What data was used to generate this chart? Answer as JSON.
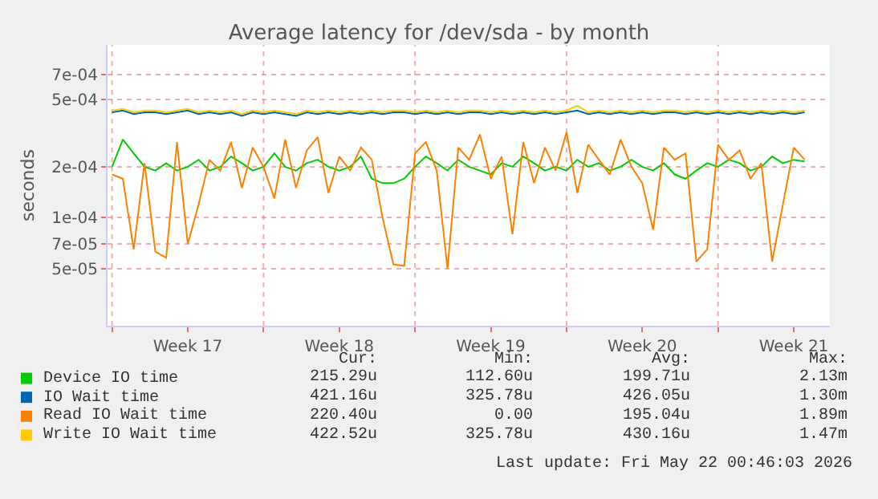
{
  "chart_data": {
    "type": "line",
    "title": "Average latency for /dev/sda - by month",
    "ylabel": "seconds",
    "log": "y",
    "grid": true,
    "legend": "bottom",
    "marker": "none",
    "line_style": "solid",
    "ylim": [
      2.3e-05,
      0.00105
    ],
    "yticks": [
      {
        "value": 0.0007,
        "label": "7e-04"
      },
      {
        "value": 0.0005,
        "label": "5e-04"
      },
      {
        "value": 0.0002,
        "label": "2e-04"
      },
      {
        "value": 0.0001,
        "label": "1e-04"
      },
      {
        "value": 7e-05,
        "label": "7e-05"
      },
      {
        "value": 5e-05,
        "label": "5e-05"
      }
    ],
    "xlim": [
      "2026-04-19T19:00",
      "2026-05-23T04:00"
    ],
    "xticks": [
      {
        "value": "2026-04-20",
        "label": null
      },
      {
        "value": "2026-04-23T12:00",
        "label": "Week 17"
      },
      {
        "value": "2026-04-27",
        "label": null
      },
      {
        "value": "2026-04-30T12:00",
        "label": "Week 18"
      },
      {
        "value": "2026-05-04",
        "label": null
      },
      {
        "value": "2026-05-07T12:00",
        "label": "Week 19"
      },
      {
        "value": "2026-05-11",
        "label": null
      },
      {
        "value": "2026-05-14T12:00",
        "label": "Week 20"
      },
      {
        "value": "2026-05-18",
        "label": null
      },
      {
        "value": "2026-05-21T12:00",
        "label": "Week 21"
      }
    ],
    "x": [
      "2026-04-20T00:00",
      "2026-04-20T12:00",
      "2026-04-21T00:00",
      "2026-04-21T12:00",
      "2026-04-22T00:00",
      "2026-04-22T12:00",
      "2026-04-23T00:00",
      "2026-04-23T12:00",
      "2026-04-24T00:00",
      "2026-04-24T12:00",
      "2026-04-25T00:00",
      "2026-04-25T12:00",
      "2026-04-26T00:00",
      "2026-04-26T12:00",
      "2026-04-27T00:00",
      "2026-04-27T12:00",
      "2026-04-28T00:00",
      "2026-04-28T12:00",
      "2026-04-29T00:00",
      "2026-04-29T12:00",
      "2026-04-30T00:00",
      "2026-04-30T12:00",
      "2026-05-01T00:00",
      "2026-05-01T12:00",
      "2026-05-02T00:00",
      "2026-05-02T12:00",
      "2026-05-03T00:00",
      "2026-05-03T12:00",
      "2026-05-04T00:00",
      "2026-05-04T12:00",
      "2026-05-05T00:00",
      "2026-05-05T12:00",
      "2026-05-06T00:00",
      "2026-05-06T12:00",
      "2026-05-07T00:00",
      "2026-05-07T12:00",
      "2026-05-08T00:00",
      "2026-05-08T12:00",
      "2026-05-09T00:00",
      "2026-05-09T12:00",
      "2026-05-10T00:00",
      "2026-05-10T12:00",
      "2026-05-11T00:00",
      "2026-05-11T12:00",
      "2026-05-12T00:00",
      "2026-05-12T12:00",
      "2026-05-13T00:00",
      "2026-05-13T12:00",
      "2026-05-14T00:00",
      "2026-05-14T12:00",
      "2026-05-15T00:00",
      "2026-05-15T12:00",
      "2026-05-16T00:00",
      "2026-05-16T12:00",
      "2026-05-17T00:00",
      "2026-05-17T12:00",
      "2026-05-18T00:00",
      "2026-05-18T12:00",
      "2026-05-19T00:00",
      "2026-05-19T12:00",
      "2026-05-20T00:00",
      "2026-05-20T12:00",
      "2026-05-21T00:00",
      "2026-05-21T12:00",
      "2026-05-22T00:00"
    ],
    "series": [
      {
        "name": "Device IO time",
        "color": "#00cc00",
        "values": [
          0.0002,
          0.00029,
          0.00024,
          0.0002,
          0.00019,
          0.00021,
          0.00019,
          0.0002,
          0.00022,
          0.00019,
          0.0002,
          0.00023,
          0.00021,
          0.00019,
          0.0002,
          0.00024,
          0.0002,
          0.00019,
          0.00021,
          0.00022,
          0.0002,
          0.00019,
          0.0002,
          0.00023,
          0.00017,
          0.00016,
          0.00016,
          0.00017,
          0.0002,
          0.00023,
          0.00021,
          0.00019,
          0.00022,
          0.0002,
          0.00019,
          0.00018,
          0.00021,
          0.0002,
          0.00023,
          0.00021,
          0.00019,
          0.0002,
          0.00019,
          0.00022,
          0.0002,
          0.00021,
          0.00019,
          0.0002,
          0.00022,
          0.0002,
          0.00019,
          0.00021,
          0.00018,
          0.00017,
          0.00019,
          0.00021,
          0.0002,
          0.00022,
          0.00021,
          0.00019,
          0.0002,
          0.00023,
          0.00021,
          0.00022,
          0.000215
        ]
      },
      {
        "name": "IO Wait time",
        "color": "#0066b3",
        "values": [
          0.00042,
          0.00043,
          0.00041,
          0.00042,
          0.00042,
          0.00041,
          0.00042,
          0.00043,
          0.00041,
          0.00042,
          0.00041,
          0.00042,
          0.0004,
          0.00042,
          0.00041,
          0.00042,
          0.00041,
          0.0004,
          0.00042,
          0.00041,
          0.00042,
          0.00041,
          0.00042,
          0.00041,
          0.00042,
          0.00041,
          0.00042,
          0.00042,
          0.00041,
          0.00042,
          0.00041,
          0.00042,
          0.00041,
          0.00042,
          0.00042,
          0.00041,
          0.00042,
          0.00041,
          0.00042,
          0.00041,
          0.00042,
          0.00041,
          0.00042,
          0.00043,
          0.00041,
          0.00042,
          0.00041,
          0.00042,
          0.00041,
          0.00042,
          0.00041,
          0.00042,
          0.00042,
          0.00041,
          0.00042,
          0.00041,
          0.00042,
          0.00041,
          0.00042,
          0.00041,
          0.00042,
          0.00041,
          0.00042,
          0.00041,
          0.00042
        ]
      },
      {
        "name": "Read IO Wait time",
        "color": "#ff8000",
        "values": [
          0.00018,
          0.00017,
          6.5e-05,
          0.00021,
          6.3e-05,
          5.8e-05,
          0.00028,
          7e-05,
          0.00012,
          0.00022,
          0.00019,
          0.00028,
          0.00015,
          0.00026,
          0.0002,
          0.00013,
          0.00029,
          0.00015,
          0.00025,
          0.0003,
          0.00014,
          0.00023,
          0.00019,
          0.00026,
          0.00022,
          0.0001,
          5.3e-05,
          5.2e-05,
          0.00024,
          0.00028,
          0.00019,
          5e-05,
          0.00026,
          0.00022,
          0.00031,
          0.00017,
          0.00023,
          8e-05,
          0.00028,
          0.00016,
          0.00026,
          0.00019,
          0.00032,
          0.00014,
          0.00027,
          0.00022,
          0.00018,
          0.00029,
          0.0002,
          0.00016,
          8.5e-05,
          0.00026,
          0.00022,
          0.00024,
          5.5e-05,
          6.5e-05,
          0.00027,
          0.00022,
          0.00025,
          0.00017,
          0.00021,
          5.5e-05,
          0.00012,
          0.00026,
          0.00022
        ]
      },
      {
        "name": "Write IO Wait time",
        "color": "#ffcc00",
        "values": [
          0.00043,
          0.00044,
          0.00042,
          0.00043,
          0.00043,
          0.00042,
          0.00043,
          0.00044,
          0.00042,
          0.00043,
          0.00042,
          0.00043,
          0.00041,
          0.00043,
          0.00042,
          0.00043,
          0.00042,
          0.00041,
          0.00043,
          0.00042,
          0.00043,
          0.00042,
          0.00043,
          0.00042,
          0.00043,
          0.00042,
          0.00043,
          0.00043,
          0.00042,
          0.00043,
          0.00042,
          0.00043,
          0.00042,
          0.00043,
          0.00043,
          0.00042,
          0.00043,
          0.00042,
          0.00043,
          0.00042,
          0.00043,
          0.00042,
          0.00043,
          0.00046,
          0.00042,
          0.00043,
          0.00042,
          0.00043,
          0.00042,
          0.00043,
          0.00042,
          0.00043,
          0.00043,
          0.00042,
          0.00043,
          0.00042,
          0.00043,
          0.00042,
          0.00043,
          0.00042,
          0.00043,
          0.00042,
          0.00043,
          0.00042,
          0.00043
        ]
      }
    ],
    "annotations": [
      "Cur:",
      "Min:",
      "Avg:",
      "Max:",
      "215.29u",
      "112.60u",
      "199.71u",
      "2.13m",
      "421.16u",
      "325.78u",
      "426.05u",
      "1.30m",
      "220.40u",
      "0.00",
      "195.04u",
      "1.89m",
      "422.52u",
      "325.78u",
      "430.16u",
      "1.47m",
      "Last update: Fri May 22 00:46:03 2026"
    ]
  }
}
